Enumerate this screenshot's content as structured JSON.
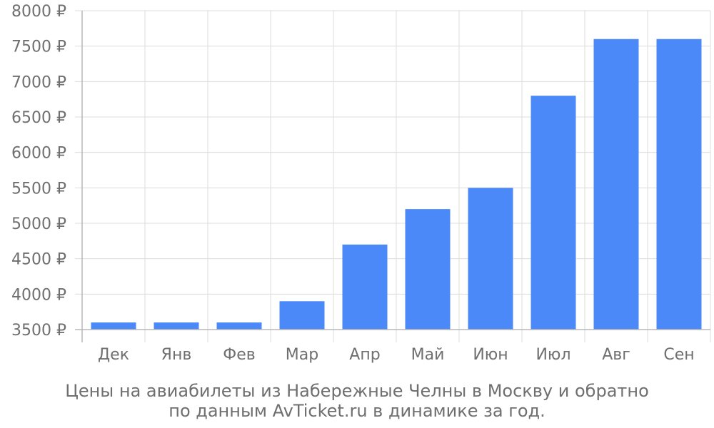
{
  "chart_data": {
    "type": "bar",
    "categories": [
      "Дек",
      "Янв",
      "Фев",
      "Мар",
      "Апр",
      "Май",
      "Июн",
      "Июл",
      "Авг",
      "Сен"
    ],
    "values": [
      3600,
      3600,
      3600,
      3900,
      4700,
      5200,
      5500,
      6800,
      7600,
      7600
    ],
    "ylim": [
      3500,
      8000
    ],
    "y_ticks": [
      3500,
      4000,
      4500,
      5000,
      5500,
      6000,
      6500,
      7000,
      7500,
      8000
    ],
    "y_tick_suffix": " ₽",
    "grid": true,
    "title": "",
    "xlabel": "",
    "ylabel": "",
    "caption_lines": [
      "Цены на авиабилеты из Набережные Челны в Москву и обратно",
      "по данным AvTicket.ru в динамике за год."
    ],
    "colors": {
      "bar": "#4b89f9",
      "grid": "#dcdcdc",
      "axis": "#b8b8b8",
      "text": "#6f6f6f"
    }
  }
}
